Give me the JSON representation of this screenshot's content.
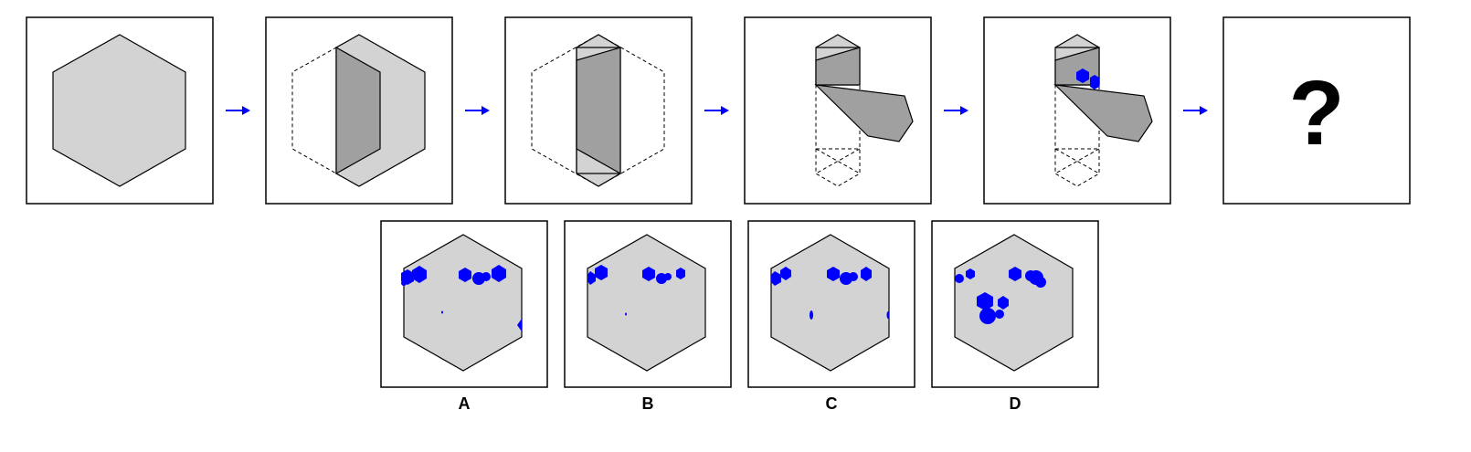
{
  "question_mark": "?",
  "colors": {
    "hexagon_fill": "#d3d3d3",
    "fold_fill": "#a0a0a0",
    "hole_color": "#0000ff",
    "arrow_color": "#0000ff",
    "outline": "#000000"
  },
  "steps": [
    {
      "name": "step-1-unfolded",
      "icon": "hexagon-icon"
    },
    {
      "name": "step-2-first-fold",
      "icon": "fold-icon"
    },
    {
      "name": "step-3-second-fold",
      "icon": "fold-icon"
    },
    {
      "name": "step-4-third-fold",
      "icon": "fold-icon"
    },
    {
      "name": "step-5-punched",
      "icon": "punch-icon"
    },
    {
      "name": "step-6-question",
      "icon": "question-icon"
    }
  ],
  "options": [
    {
      "label": "A"
    },
    {
      "label": "B"
    },
    {
      "label": "C"
    },
    {
      "label": "D"
    }
  ]
}
